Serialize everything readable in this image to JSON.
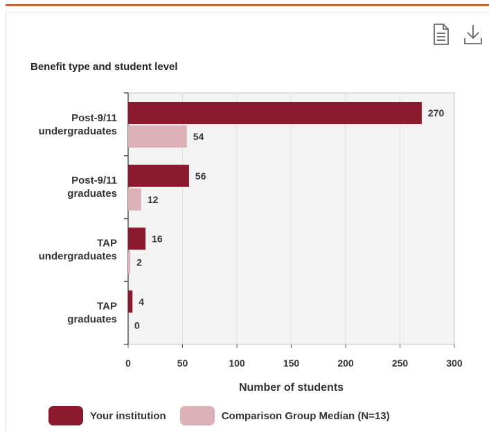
{
  "colors": {
    "accent_rule": "#c8643c",
    "series_institution": "#8b1a2e",
    "series_comparison": "#dcb1b8",
    "plot_background": "#f4f3f3"
  },
  "toolbar": {
    "document_icon": "document-icon",
    "download_icon": "download-icon"
  },
  "chart_data": {
    "type": "bar",
    "orientation": "horizontal",
    "title": "Benefit type and student level",
    "xlabel": "Number of students",
    "ylabel": "",
    "xlim": [
      0,
      300
    ],
    "xticks": [
      "0",
      "50",
      "100",
      "150",
      "200",
      "250",
      "300"
    ],
    "grid": true,
    "legend_position": "bottom",
    "categories": [
      [
        "Post-9/11",
        "undergraduates"
      ],
      [
        "Post-9/11",
        "graduates"
      ],
      [
        "TAP",
        "undergraduates"
      ],
      [
        "TAP",
        "graduates"
      ]
    ],
    "series": [
      {
        "name": "Your institution",
        "values": [
          270,
          56,
          16,
          4
        ]
      },
      {
        "name": "Comparison Group Median (N=13)",
        "values": [
          54,
          12,
          2,
          0
        ]
      }
    ]
  }
}
